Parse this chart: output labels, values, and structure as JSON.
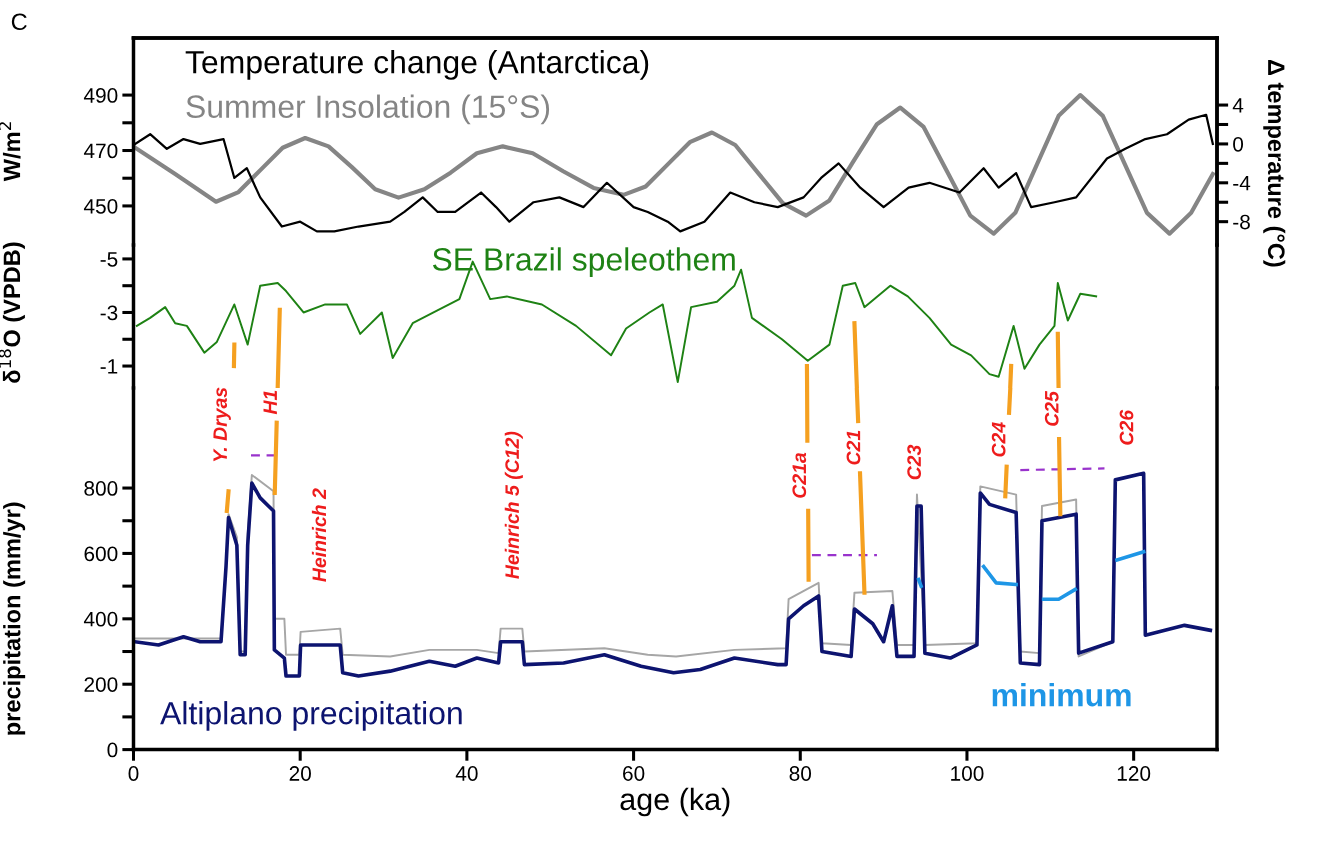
{
  "chart_data": [
    {
      "type": "line",
      "ylabel": "W/m$^{2}$",
      "y2label": "Δ temperature (°C)",
      "tick_labels": "y",
      "xlim": [
        0,
        130
      ],
      "ylim": [
        435.9,
        510.6
      ],
      "yticks": [
        490,
        {
          "value": 480,
          "label": null
        },
        470,
        {
          "value": 460,
          "label": null
        },
        450
      ],
      "y2lim": [
        -10.4,
        10.9
      ],
      "y2ticks": [
        4,
        {
          "value": 2,
          "label": null
        },
        0,
        {
          "value": -2,
          "label": null
        },
        -4,
        {
          "value": -6,
          "label": null
        },
        -8
      ],
      "series": [
        {
          "name": "Temperature change (Antarctica)",
          "color": "#000000",
          "axis": "y2",
          "x": [
            0.2,
            2,
            4,
            6,
            8,
            10.8,
            12.1,
            13.6,
            15.2,
            17.8,
            20,
            22,
            24.1,
            27,
            30.8,
            32.5,
            34.7,
            36.5,
            38.6,
            41.7,
            43.5,
            45.1,
            48,
            51.1,
            54,
            56.8,
            60,
            61.7,
            64.1,
            65.6,
            68.5,
            71.6,
            74.5,
            77.3,
            80.4,
            82.5,
            84.6,
            87.2,
            90.0,
            93,
            95.5,
            99.1,
            102,
            103.8,
            105.9,
            107.7,
            110.5,
            113.1,
            116.8,
            119,
            121.4,
            124,
            126.6,
            128.7,
            129.5
          ],
          "values": [
            0,
            1,
            -0.5,
            0.5,
            0,
            0.5,
            -3.5,
            -2.5,
            -5.5,
            -8.5,
            -8,
            -9,
            -9,
            -8.5,
            -8,
            -7,
            -5.5,
            -7,
            -7,
            -5,
            -6.5,
            -8,
            -6,
            -5.5,
            -6.5,
            -4,
            -6.5,
            -7,
            -8,
            -9,
            -8,
            -5,
            -6,
            -6.5,
            -5.5,
            -3.5,
            -2,
            -4.5,
            -6.5,
            -4.5,
            -4,
            -5,
            -2.5,
            -4.5,
            -3,
            -6.5,
            -6,
            -5.5,
            -1.5,
            -0.5,
            0.5,
            1,
            2.5,
            3,
            0
          ]
        },
        {
          "name": "Summer Insolation (15°S)",
          "color": "#858585",
          "x": [
            0.2,
            5,
            9.9,
            12.6,
            15.25,
            17.9,
            20.6,
            23.4,
            26.2,
            29.0,
            31.8,
            34.9,
            38.05,
            41.2,
            44.3,
            47.9,
            51.55,
            55.2,
            58.8,
            61.45,
            64.1,
            66.75,
            69.4,
            72.2,
            75.05,
            77.9,
            80.7,
            83.5,
            86.35,
            89.2,
            92.0,
            94.8,
            97.6,
            100.4,
            103.2,
            105.8,
            108.4,
            111.0,
            113.6,
            116.3,
            118.95,
            121.6,
            124.3,
            126.9,
            129.5
          ],
          "values": [
            471,
            461.5,
            451.5,
            455,
            463,
            471,
            474.5,
            471.5,
            464,
            456,
            453,
            456,
            462,
            469,
            471.5,
            469,
            462.5,
            456.5,
            454,
            457,
            465,
            473,
            476.5,
            472,
            461.5,
            451,
            446.5,
            452,
            466,
            479.5,
            485.5,
            478.5,
            462.5,
            446.5,
            440,
            447.5,
            465,
            482.5,
            490,
            482.5,
            465,
            447.5,
            440,
            447.5,
            461.5
          ]
        }
      ],
      "annotations": [
        "C"
      ]
    },
    {
      "type": "line",
      "ylabel": "δ$^{18}$O (VPDB)",
      "tick_labels": "y",
      "xlim": [
        0,
        130
      ],
      "ylim": [
        -0.18,
        -5.52
      ],
      "yticks": [
        -5,
        {
          "value": -4,
          "label": null
        },
        -3,
        {
          "value": -2,
          "label": null
        },
        -1
      ],
      "series": [
        {
          "name": "SE Brazil speleothem",
          "color": "#1e8214",
          "x": [
            0.4,
            2,
            3.8,
            5,
            6.4,
            8.5,
            10.0,
            12.1,
            13.7,
            15.2,
            17.3,
            18.3,
            20.4,
            23,
            25.6,
            27.2,
            29.8,
            31.1,
            33.5,
            36.0,
            39.1,
            40.7,
            42.8,
            44.8,
            49.0,
            53.1,
            57.3,
            59.1,
            61.9,
            63.5,
            65.3,
            66.9,
            70,
            72.1,
            72.9,
            74.2,
            77.8,
            80.9,
            83.5,
            85.1,
            86.6,
            87.7,
            90.8,
            92.9,
            95.5,
            98.1,
            100.5,
            102.7,
            103.8,
            105.6,
            106.9,
            108.7,
            110.5,
            110.9,
            112.1,
            113.6,
            115.5
          ],
          "values": [
            -2.5,
            -2.8,
            -3.2,
            -2.6,
            -2.5,
            -1.5,
            -1.9,
            -3.3,
            -1.8,
            -4,
            -4.1,
            -3.8,
            -3,
            -3.3,
            -3.3,
            -2.2,
            -3,
            -1.3,
            -2.6,
            -3,
            -3.5,
            -4.9,
            -3.5,
            -3.6,
            -3.3,
            -2.5,
            -1.4,
            -2.4,
            -3,
            -3.3,
            -0.4,
            -3.2,
            -3.4,
            -4,
            -4.6,
            -2.8,
            -2,
            -1.2,
            -1.8,
            -4,
            -4.1,
            -3.2,
            -4,
            -3.6,
            -2.8,
            -1.8,
            -1.4,
            -0.7,
            -0.6,
            -2.5,
            -0.9,
            -1.8,
            -2.5,
            -4.1,
            -2.7,
            -3.7,
            -3.6
          ]
        },
        {
          "color": "#f5a020",
          "x": [
            12.1,
            12.05,
            null,
            17.55,
            17.3,
            null,
            80.8,
            80.82,
            null,
            86.5,
            86.79,
            null,
            105.3,
            105.19,
            null,
            110.9,
            110.99
          ],
          "values": [
            -1.8,
            -1.0,
            null,
            -3.1,
            -0.2,
            null,
            -1.0,
            -0.2,
            null,
            -2.6,
            -0.2,
            null,
            -1.0,
            -0.2,
            null,
            -2.2,
            -0.2
          ]
        }
      ]
    },
    {
      "type": "line",
      "xlabel": "age (ka)",
      "ylabel": "precipitation (mm/yr)",
      "xlim": [
        0,
        130
      ],
      "xticks": [
        0,
        20,
        40,
        60,
        80,
        100,
        120
      ],
      "ylim": [
        0,
        1106
      ],
      "yticks": [
        0,
        {
          "value": 100,
          "label": null
        },
        200,
        {
          "value": 300,
          "label": null
        },
        400,
        {
          "value": 500,
          "label": null
        },
        600,
        {
          "value": 700,
          "label": null
        },
        800
      ],
      "series": [
        {
          "color": "#a6a6a6",
          "x": [
            0.15,
            10.5,
            11.1,
            11.4,
            12.4,
            12.8,
            13.4,
            13.7,
            14.2,
            16.8,
            16.9,
            18.1,
            18.3,
            19.9,
            20.05,
            24.8,
            25.1,
            30.8,
            35.5,
            41.2,
            43.8,
            44.05,
            46.65,
            46.9,
            56.5,
            61.7,
            65.1,
            72.1,
            78.3,
            78.6,
            82.2,
            82.6,
            86.1,
            86.5,
            91.05,
            91.6,
            93.65,
            94.0,
            94.95,
            101.2,
            101.6,
            105.9,
            106.4,
            108.7,
            109.0,
            113.1,
            113.4,
            117.5
          ],
          "values": [
            340,
            340,
            560,
            720,
            650,
            300,
            300,
            660,
            840,
            790,
            400,
            400,
            290,
            290,
            360,
            370,
            290,
            285,
            305,
            305,
            295,
            370,
            370,
            300,
            310,
            290,
            285,
            305,
            310,
            460,
            510,
            325,
            320,
            480,
            485,
            320,
            320,
            780,
            320,
            325,
            805,
            780,
            300,
            295,
            745,
            765,
            285,
            330
          ]
        },
        {
          "name": "Altiplano precipitation",
          "color": "#0d1470",
          "x": [
            0.15,
            3,
            6,
            8,
            10.5,
            11.1,
            11.4,
            12.4,
            12.8,
            13.4,
            13.7,
            14.2,
            15.2,
            16.8,
            16.9,
            18.1,
            18.3,
            19.9,
            20.05,
            24.8,
            25.1,
            27,
            30.8,
            35.5,
            38.6,
            41.2,
            43.8,
            44.05,
            46.65,
            46.9,
            51.6,
            56.5,
            60.9,
            64.8,
            68,
            72.1,
            77.3,
            78.3,
            78.6,
            80.4,
            82.2,
            82.6,
            86.1,
            86.5,
            88.7,
            90.0,
            91.05,
            91.6,
            93.65,
            94.0,
            94.5,
            94.95,
            98,
            101.2,
            101.6,
            102.7,
            105.9,
            106.4,
            108.7,
            109.0,
            113.1,
            113.4,
            117.5,
            117.8,
            121.2,
            121.4,
            126.1,
            129.2
          ],
          "values": [
            330,
            320,
            345,
            330,
            330,
            560,
            710,
            625,
            290,
            290,
            625,
            815,
            770,
            730,
            305,
            280,
            225,
            225,
            320,
            320,
            235,
            225,
            240,
            270,
            255,
            280,
            265,
            330,
            330,
            260,
            265,
            290,
            255,
            235,
            245,
            280,
            260,
            260,
            400,
            440,
            470,
            300,
            285,
            430,
            385,
            330,
            440,
            285,
            285,
            745,
            745,
            295,
            280,
            320,
            785,
            750,
            725,
            265,
            260,
            700,
            720,
            295,
            330,
            825,
            845,
            350,
            380,
            365
          ]
        },
        {
          "name": "minimum",
          "color": "#1e96e6",
          "x": [
            94.2,
            94.5,
            null,
            102.0,
            103.5,
            105.9,
            null,
            109.2,
            111.0,
            113.0,
            null,
            118.0,
            121.2
          ],
          "values": [
            520,
            500,
            null,
            560,
            510,
            505,
            null,
            460,
            460,
            490,
            null,
            580,
            605
          ]
        },
        {
          "color": "#9933cc",
          "line_style": "dashed",
          "x": [
            14.1,
            16.9,
            null,
            81.4,
            89.2,
            null,
            106.4,
            116.5
          ],
          "values": [
            900,
            900,
            null,
            595,
            595,
            null,
            855,
            860
          ]
        },
        {
          "color": "#f5a020",
          "x": [
            11.4,
            11.2,
            null,
            17.18,
            16.95,
            null,
            80.82,
            80.85,
            null,
            80.95,
            81.0,
            null,
            86.79,
            86.94,
            null,
            87.17,
            87.7,
            null,
            105.19,
            105.05,
            null,
            104.76,
            104.6,
            null,
            111.05,
            111.2
          ],
          "values": [
            790,
            730,
            null,
            1000,
            785,
            null,
            1100,
            945,
            null,
            730,
            520,
            null,
            1100,
            1005,
            null,
            845,
            480,
            null,
            1100,
            1030,
            null,
            865,
            775,
            null,
            950,
            720
          ]
        }
      ],
      "annotations": [
        "Y. Dryas",
        "H1",
        "Heinrich 2",
        "Heinrich 5 (C12)",
        "C21a",
        "C21",
        "C23",
        "C24",
        "C25",
        "C26"
      ]
    }
  ]
}
